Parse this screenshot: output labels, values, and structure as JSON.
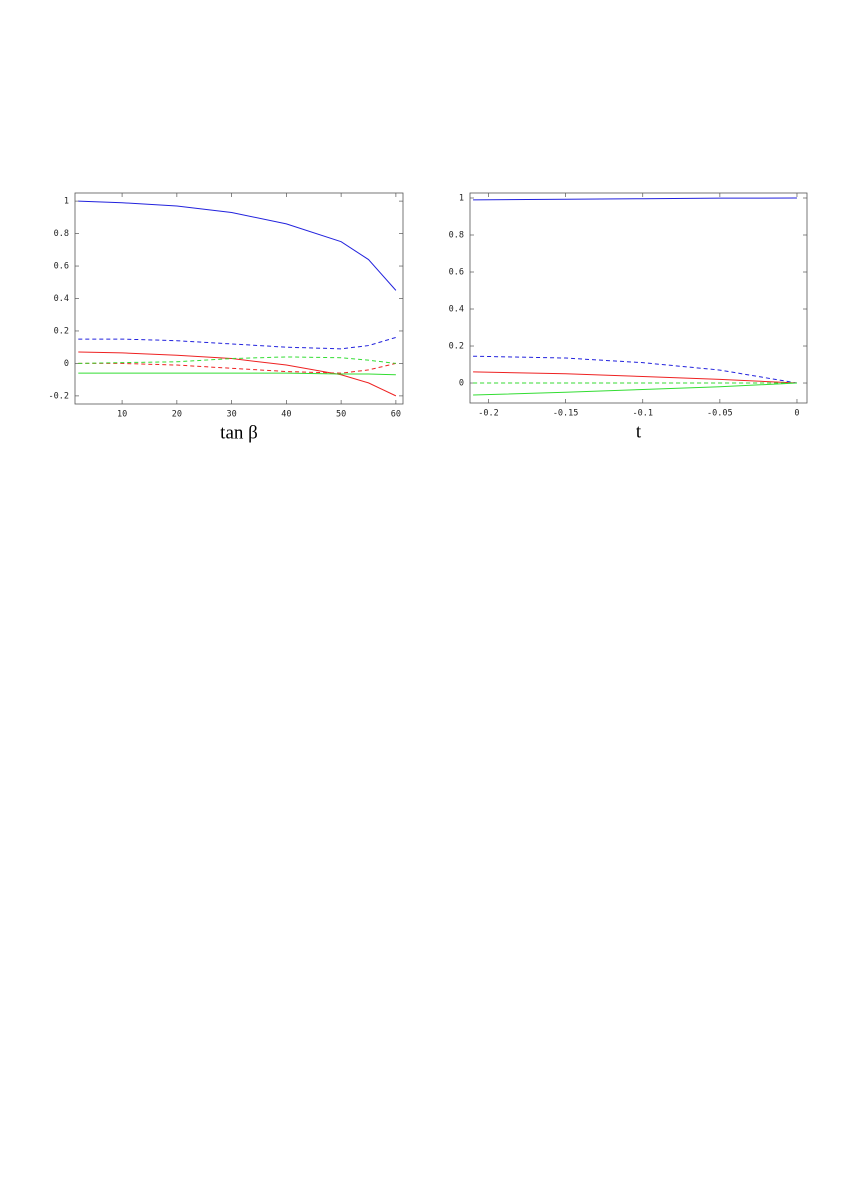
{
  "chart_data": [
    {
      "type": "line",
      "xlabel": "tan β",
      "x": [
        2,
        10,
        20,
        30,
        40,
        50,
        55,
        60
      ],
      "xlim": [
        1.4,
        61.3
      ],
      "ylim": [
        -0.25,
        1.05
      ],
      "xticks": [
        10,
        20,
        30,
        40,
        50,
        60
      ],
      "yticks": [
        -0.2,
        0,
        0.2,
        0.4,
        0.6,
        0.8,
        1
      ],
      "series": [
        {
          "color": "#2222dd",
          "dash": false,
          "values": [
            1.0,
            0.99,
            0.97,
            0.93,
            0.86,
            0.75,
            0.64,
            0.45
          ]
        },
        {
          "color": "#2222dd",
          "dash": true,
          "values": [
            0.15,
            0.15,
            0.14,
            0.12,
            0.1,
            0.09,
            0.11,
            0.16
          ]
        },
        {
          "color": "#ee2222",
          "dash": false,
          "values": [
            0.07,
            0.065,
            0.05,
            0.03,
            -0.01,
            -0.07,
            -0.12,
            -0.2
          ]
        },
        {
          "color": "#ee2222",
          "dash": true,
          "values": [
            0,
            0,
            -0.01,
            -0.03,
            -0.05,
            -0.06,
            -0.04,
            0
          ]
        },
        {
          "color": "#33dd33",
          "dash": true,
          "values": [
            0,
            0.005,
            0.01,
            0.03,
            0.04,
            0.035,
            0.02,
            0
          ]
        },
        {
          "color": "#33dd33",
          "dash": false,
          "values": [
            -0.06,
            -0.06,
            -0.06,
            -0.06,
            -0.06,
            -0.065,
            -0.065,
            -0.07
          ]
        }
      ]
    },
    {
      "type": "line",
      "xlabel": "t",
      "x": [
        -0.21,
        -0.15,
        -0.1,
        -0.05,
        0
      ],
      "xlim": [
        -0.212,
        0.0065
      ],
      "ylim": [
        -0.108,
        1.027
      ],
      "xticks": [
        -0.2,
        -0.15,
        -0.1,
        -0.05,
        0
      ],
      "yticks": [
        0,
        0.2,
        0.4,
        0.6,
        0.8,
        1
      ],
      "series": [
        {
          "color": "#2222dd",
          "dash": false,
          "values": [
            0.99,
            0.993,
            0.996,
            0.999,
            1.0
          ]
        },
        {
          "color": "#2222dd",
          "dash": true,
          "values": [
            0.145,
            0.135,
            0.11,
            0.07,
            0
          ]
        },
        {
          "color": "#ee2222",
          "dash": false,
          "values": [
            0.06,
            0.05,
            0.035,
            0.02,
            0
          ]
        },
        {
          "color": "#ee2222",
          "dash": true,
          "values": [
            0,
            0,
            0,
            0,
            0
          ]
        },
        {
          "color": "#33dd33",
          "dash": true,
          "values": [
            0,
            0,
            0,
            0,
            0
          ]
        },
        {
          "color": "#33dd33",
          "dash": false,
          "values": [
            -0.065,
            -0.05,
            -0.035,
            -0.02,
            0
          ]
        }
      ]
    }
  ]
}
